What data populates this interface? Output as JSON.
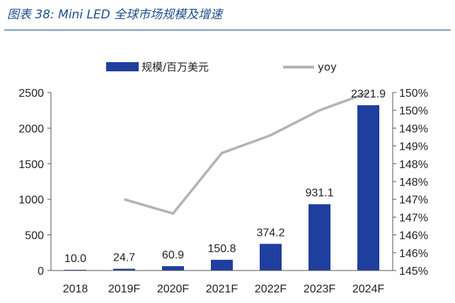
{
  "figure": {
    "title": "图表 38:  Mini LED 全球市场规模及增速"
  },
  "chart_data": {
    "type": "bar",
    "categories": [
      "2018",
      "2019F",
      "2020F",
      "2021F",
      "2022F",
      "2023F",
      "2024F"
    ],
    "series": [
      {
        "name": "规模/百万美元",
        "kind": "bar",
        "axis": "left",
        "color": "#1f3f9e",
        "values": [
          10.0,
          24.7,
          60.9,
          150.8,
          374.2,
          931.1,
          2321.9
        ],
        "labels": [
          "10.0",
          "24.7",
          "60.9",
          "150.8",
          "374.2",
          "931.1",
          "2321.9"
        ]
      },
      {
        "name": "yoy",
        "kind": "line",
        "axis": "right",
        "color": "#b3b3b3",
        "values": [
          null,
          147.0,
          146.6,
          148.3,
          148.8,
          149.5,
          150.0
        ]
      }
    ],
    "y_left": {
      "lim": [
        0,
        2500
      ],
      "ticks": [
        0,
        500,
        1000,
        1500,
        2000,
        2500
      ],
      "tick_labels": [
        "0",
        "500",
        "1000",
        "1500",
        "2000",
        "2500"
      ]
    },
    "y_right": {
      "lim": [
        145.0,
        150.0
      ],
      "tick_labels": [
        "145%",
        "146%",
        "146%",
        "147%",
        "147%",
        "148%",
        "148%",
        "149%",
        "149%",
        "150%",
        "150%"
      ]
    },
    "legend": {
      "position": "top"
    },
    "grid": false
  }
}
